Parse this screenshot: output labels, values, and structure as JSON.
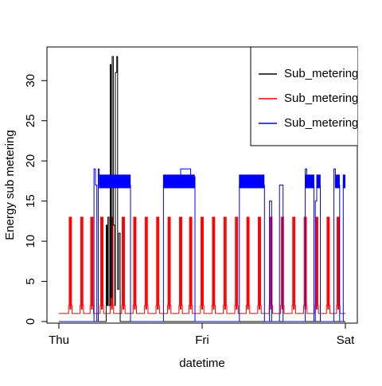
{
  "chart_data": {
    "type": "line",
    "title": "",
    "xlabel": "datetime",
    "ylabel": "Energy sub metering",
    "x_ticks": [
      "Thu",
      "Fri",
      "Sat"
    ],
    "x_range_days": [
      0,
      2
    ],
    "y_ticks": [
      0,
      5,
      10,
      15,
      20,
      25,
      30
    ],
    "ylim": [
      0,
      33
    ],
    "grid": false,
    "legend_position": "top-right",
    "colors": {
      "axis": "#000000",
      "background": "#ffffff"
    },
    "series": [
      {
        "name": "Sub_metering",
        "color": "#000000",
        "note_units": "x in days from Thu 00:00",
        "points": [
          [
            0.0,
            0
          ],
          [
            0.33,
            0
          ],
          [
            0.33,
            12
          ],
          [
            0.336,
            12
          ],
          [
            0.336,
            2
          ],
          [
            0.342,
            2
          ],
          [
            0.342,
            13
          ],
          [
            0.35,
            13
          ],
          [
            0.35,
            2
          ],
          [
            0.358,
            2
          ],
          [
            0.358,
            32
          ],
          [
            0.364,
            32
          ],
          [
            0.364,
            3
          ],
          [
            0.372,
            3
          ],
          [
            0.372,
            33
          ],
          [
            0.38,
            33
          ],
          [
            0.38,
            12
          ],
          [
            0.39,
            12
          ],
          [
            0.39,
            2
          ],
          [
            0.394,
            2
          ],
          [
            0.394,
            31
          ],
          [
            0.404,
            31
          ],
          [
            0.404,
            33
          ],
          [
            0.41,
            33
          ],
          [
            0.41,
            4
          ],
          [
            0.418,
            4
          ],
          [
            0.418,
            11
          ],
          [
            0.428,
            11
          ],
          [
            0.428,
            0
          ],
          [
            2.0,
            0
          ]
        ]
      },
      {
        "name": "Sub_metering",
        "color": "#ff0000",
        "note_units": "x in days from Thu 00:00",
        "baseline": 1,
        "spike_peak": 13,
        "spike_centers": [
          0.08,
          0.16,
          0.23,
          0.3,
          0.37,
          0.45,
          0.53,
          0.61,
          0.69,
          0.77,
          0.85,
          0.92,
          1.0,
          1.08,
          1.16,
          1.24,
          1.32,
          1.4,
          1.48,
          1.56,
          1.64,
          1.72,
          1.8,
          1.88,
          1.95
        ]
      },
      {
        "name": "Sub_metering",
        "color": "#0000ff",
        "note_units": "x in days from Thu 00:00",
        "points": [
          [
            0.0,
            0
          ],
          [
            0.245,
            0
          ],
          [
            0.245,
            19
          ],
          [
            0.255,
            19
          ],
          [
            0.255,
            17
          ],
          [
            0.265,
            17
          ],
          [
            0.265,
            0
          ],
          [
            0.275,
            0
          ],
          [
            0.275,
            19
          ],
          [
            0.282,
            19
          ],
          [
            0.282,
            17
          ],
          [
            0.44,
            17
          ],
          [
            0.44,
            18
          ],
          [
            0.46,
            18
          ],
          [
            0.46,
            17
          ],
          [
            0.5,
            17
          ],
          [
            0.5,
            0
          ],
          [
            0.73,
            0
          ],
          [
            0.73,
            17
          ],
          [
            0.745,
            17
          ],
          [
            0.745,
            18
          ],
          [
            0.81,
            18
          ],
          [
            0.81,
            17
          ],
          [
            0.85,
            17
          ],
          [
            0.85,
            19
          ],
          [
            0.92,
            19
          ],
          [
            0.92,
            18
          ],
          [
            0.95,
            18
          ],
          [
            0.95,
            0
          ],
          [
            1.26,
            0
          ],
          [
            1.26,
            17
          ],
          [
            1.285,
            17
          ],
          [
            1.285,
            18
          ],
          [
            1.38,
            18
          ],
          [
            1.38,
            17
          ],
          [
            1.435,
            17
          ],
          [
            1.435,
            0
          ],
          [
            1.47,
            0
          ],
          [
            1.47,
            15
          ],
          [
            1.485,
            15
          ],
          [
            1.485,
            0
          ],
          [
            1.54,
            0
          ],
          [
            1.54,
            17
          ],
          [
            1.565,
            17
          ],
          [
            1.565,
            0
          ],
          [
            1.72,
            0
          ],
          [
            1.72,
            19
          ],
          [
            1.73,
            19
          ],
          [
            1.73,
            17
          ],
          [
            1.78,
            17
          ],
          [
            1.78,
            0
          ],
          [
            1.79,
            0
          ],
          [
            1.79,
            15
          ],
          [
            1.8,
            15
          ],
          [
            1.8,
            17
          ],
          [
            1.825,
            17
          ],
          [
            1.825,
            0
          ],
          [
            1.92,
            0
          ],
          [
            1.92,
            19
          ],
          [
            1.93,
            19
          ],
          [
            1.93,
            17
          ],
          [
            1.96,
            17
          ],
          [
            1.96,
            0
          ],
          [
            1.985,
            0
          ],
          [
            1.985,
            17
          ],
          [
            2.0,
            17
          ]
        ],
        "jitter_segments": [
          [
            0.282,
            0.5
          ],
          [
            0.73,
            0.95
          ],
          [
            1.26,
            1.435
          ],
          [
            1.72,
            1.78
          ],
          [
            1.8,
            1.825
          ],
          [
            1.93,
            1.96
          ],
          [
            1.985,
            2.0
          ]
        ]
      }
    ]
  }
}
